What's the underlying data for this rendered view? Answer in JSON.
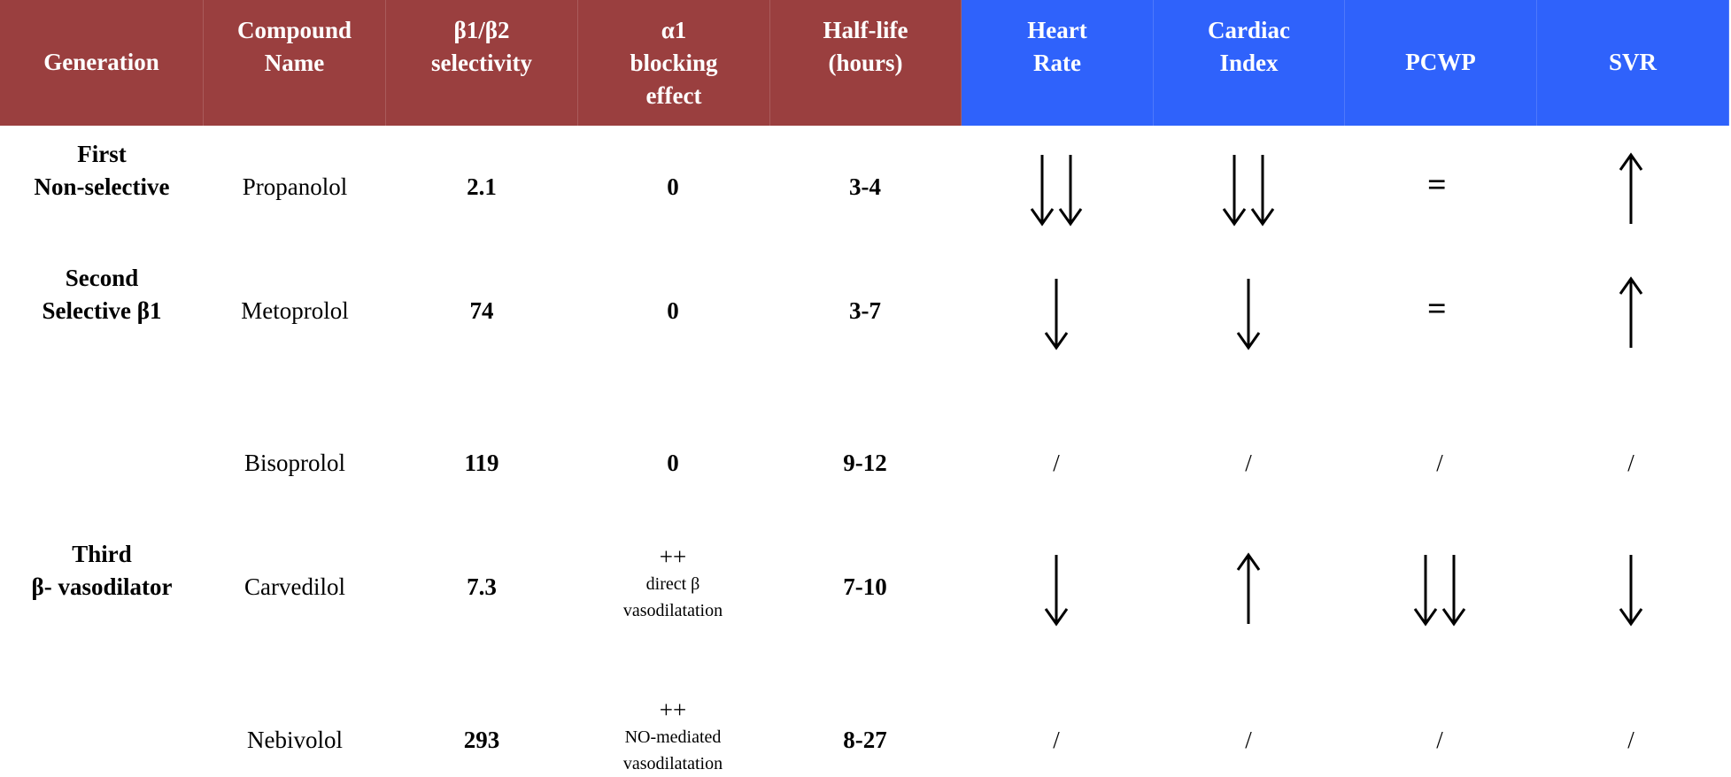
{
  "colors": {
    "header_red": "#9a3f3f",
    "header_blue": "#2f62fb"
  },
  "headers": [
    {
      "lines": [
        "Generation"
      ]
    },
    {
      "lines": [
        "Compound",
        "Name"
      ]
    },
    {
      "lines": [
        "β1/β2",
        "selectivity"
      ]
    },
    {
      "lines": [
        "α1",
        "blocking",
        "effect"
      ]
    },
    {
      "lines": [
        "Half-life",
        "(hours)"
      ]
    },
    {
      "lines": [
        "Heart",
        "Rate"
      ]
    },
    {
      "lines": [
        "Cardiac",
        "Index"
      ]
    },
    {
      "lines": [
        "PCWP"
      ]
    },
    {
      "lines": [
        "SVR"
      ]
    }
  ],
  "rows": [
    {
      "generation": [
        "First",
        "Non-selective"
      ],
      "compound": "Propanolol",
      "selectivity": "2.1",
      "alpha_lines": [
        "0"
      ],
      "half_life": "3-4",
      "effects": {
        "heart_rate": "down-down",
        "cardiac_index": "down-down",
        "pcwp": "equal",
        "svr": "up"
      }
    },
    {
      "generation": [
        "Second",
        "Selective β1"
      ],
      "compound": "Metoprolol",
      "selectivity": "74",
      "alpha_lines": [
        "0"
      ],
      "half_life": "3-7",
      "effects": {
        "heart_rate": "down",
        "cardiac_index": "down",
        "pcwp": "equal",
        "svr": "up"
      }
    },
    {
      "generation": [],
      "compound": "Bisoprolol",
      "selectivity": "119",
      "alpha_lines": [
        "0"
      ],
      "half_life": "9-12",
      "effects": {
        "heart_rate": "/",
        "cardiac_index": "/",
        "pcwp": "/",
        "svr": "/"
      }
    },
    {
      "generation": [
        "Third",
        "β- vasodilator"
      ],
      "compound": "Carvedilol",
      "selectivity": "7.3",
      "alpha_lines": [
        "++",
        "direct β",
        "vasodilatation"
      ],
      "half_life": "7-10",
      "effects": {
        "heart_rate": "down",
        "cardiac_index": "up",
        "pcwp": "down-down",
        "svr": "down"
      }
    },
    {
      "generation": [],
      "compound": "Nebivolol",
      "selectivity": "293",
      "alpha_lines": [
        "++",
        "NO-mediated",
        "vasodilatation"
      ],
      "half_life": "8-27",
      "effects": {
        "heart_rate": "/",
        "cardiac_index": "/",
        "pcwp": "/",
        "svr": "/"
      }
    }
  ]
}
